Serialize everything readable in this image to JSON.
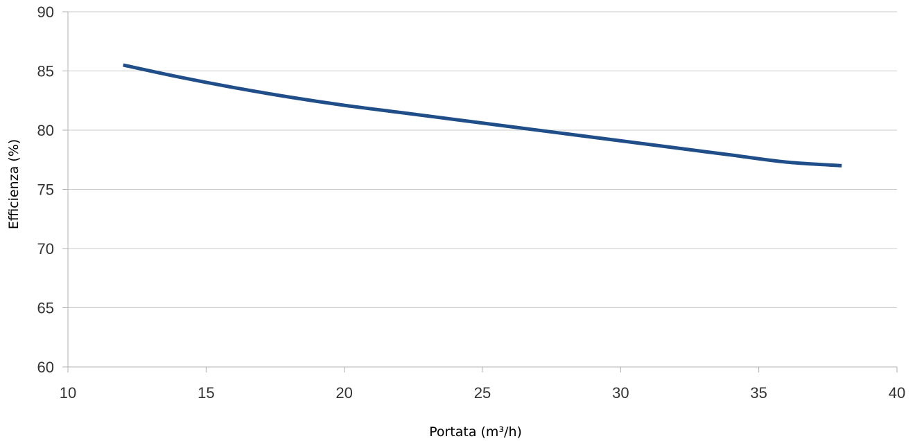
{
  "chart_data": {
    "type": "line",
    "title": "",
    "xlabel": "Portata (m³/h)",
    "ylabel": "Efficienza (%)",
    "xlim": [
      10,
      40
    ],
    "ylim": [
      60,
      90
    ],
    "x_ticks": [
      "10",
      "15",
      "20",
      "25",
      "30",
      "35",
      "40"
    ],
    "y_ticks": [
      "60",
      "65",
      "70",
      "75",
      "80",
      "85",
      "90"
    ],
    "grid": "horizontal",
    "legend": "none",
    "series": [
      {
        "color": "#1f4e89",
        "x": [
          12,
          14,
          16,
          18,
          20,
          22,
          24,
          26,
          28,
          30,
          32,
          34,
          36,
          38
        ],
        "values": [
          85.5,
          84.5,
          83.6,
          82.8,
          82.1,
          81.5,
          80.9,
          80.3,
          79.7,
          79.1,
          78.5,
          77.9,
          77.3,
          77.0
        ]
      }
    ]
  }
}
